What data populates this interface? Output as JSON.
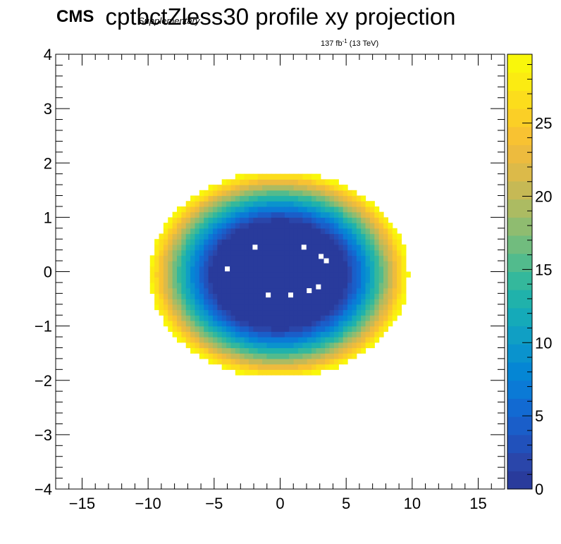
{
  "header": {
    "cms_label": "CMS",
    "supplementary_label": "Supplementary",
    "title": "cptbctZless30 profile xy projection",
    "lumi_value": "137 fb",
    "lumi_exponent": "-1",
    "lumi_energy": " (13 TeV)"
  },
  "chart_data": {
    "type": "heatmap",
    "title": "cptbctZless30 profile xy projection",
    "xlabel": "",
    "ylabel": "",
    "xlim": [
      -17,
      17
    ],
    "ylim": [
      -4,
      4
    ],
    "zlim": [
      0,
      29.7
    ],
    "x_ticks": [
      -15,
      -10,
      -5,
      0,
      5,
      10,
      15
    ],
    "y_ticks": [
      -4,
      -3,
      -2,
      -1,
      0,
      1,
      2,
      3,
      4
    ],
    "z_ticks": [
      0,
      5,
      10,
      15,
      20,
      25
    ],
    "x_tick_labels": [
      "−15",
      "−10",
      "−5",
      "0",
      "5",
      "10",
      "15"
    ],
    "y_tick_labels": [
      "−4",
      "−3",
      "−2",
      "−1",
      "0",
      "1",
      "2",
      "3",
      "4"
    ],
    "z_tick_labels": [
      "0",
      "5",
      "10",
      "15",
      "20",
      "25"
    ],
    "description_of_surface": "Elliptical profile: value ~0 in the core, rising to ~29 at the rim of an ellipse centered near (0, -0.05) with semi-axes ~9.8 in x and ~1.9 in y; empty outside.",
    "ellipse": {
      "x0": -0.1,
      "y0": -0.05,
      "rx": 9.8,
      "ry": 1.9
    },
    "outlier_bins": [
      {
        "x": -1.9,
        "y": 0.45
      },
      {
        "x": 1.8,
        "y": 0.45
      },
      {
        "x": 3.1,
        "y": 0.28
      },
      {
        "x": 3.5,
        "y": 0.2
      },
      {
        "x": -4.0,
        "y": 0.05
      },
      {
        "x": -0.9,
        "y": -0.43
      },
      {
        "x": 0.8,
        "y": -0.43
      },
      {
        "x": 2.2,
        "y": -0.35
      },
      {
        "x": 2.9,
        "y": -0.28
      }
    ],
    "palette": [
      "#293b9c",
      "#2a46aa",
      "#2151bb",
      "#1a5ec9",
      "#126ad2",
      "#0b7ad6",
      "#0586d4",
      "#0a93cd",
      "#109fc4",
      "#15aab9",
      "#20b2ab",
      "#34b89c",
      "#52bb8d",
      "#71bc7e",
      "#8fbc70",
      "#acbb62",
      "#c6b955",
      "#dcba49",
      "#edbb3e",
      "#f8c232",
      "#fbcf26",
      "#fcdd1c",
      "#fbeb12",
      "#f9f70b"
    ]
  }
}
